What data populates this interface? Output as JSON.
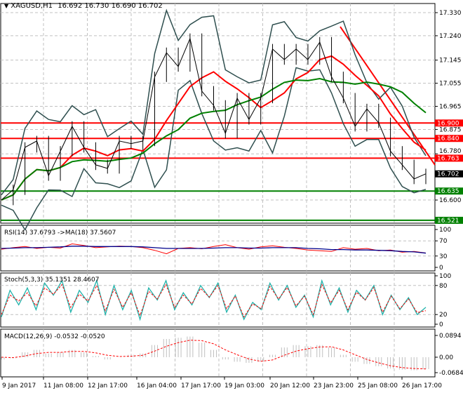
{
  "header": {
    "symbol": "XAGUSD,H1",
    "ohlc": "16.692 16.730 16.690 16.702",
    "menu_icon": "triangle-down-icon"
  },
  "colors": {
    "bull": "#000000",
    "resistance": "#ff0000",
    "support": "#008000",
    "ma_fast": "#ff0000",
    "ma_slow": "#008000",
    "bands": "#2f4f4f",
    "rsi": "#ff0000",
    "rsi_ma": "#00008b",
    "stoch_main": "#20b2aa",
    "stoch_signal": "#ff0000",
    "macd_hist": "#c0c0c0",
    "macd_signal": "#ff0000"
  },
  "chart_data": [
    {
      "type": "line",
      "panel": "price",
      "ylim": [
        16.5,
        17.36
      ],
      "yticks": [
        "17.330",
        "17.240",
        "17.145",
        "17.055",
        "16.965",
        "16.875",
        "16.780",
        "16.600"
      ],
      "xticks": [
        "9 Jan 2017",
        "11 Jan 08:00",
        "12 Jan 17:00",
        "16 Jan 04:00",
        "17 Jan 17:00",
        "19 Jan 03:00",
        "20 Jan 12:00",
        "23 Jan 23:00",
        "25 Jan 08:00",
        "26 Jan 17:00"
      ],
      "close": [
        16.6,
        16.64,
        16.805,
        16.83,
        16.695,
        16.79,
        16.887,
        16.805,
        16.737,
        16.723,
        16.83,
        16.82,
        16.83,
        17.08,
        17.174,
        17.12,
        17.229,
        17.024,
        16.969,
        16.86,
        16.997,
        16.914,
        16.997,
        17.188,
        17.147,
        17.188,
        17.147,
        17.215,
        17.08,
        16.997,
        16.887,
        16.955,
        16.901,
        16.79,
        16.737,
        16.682,
        16.702
      ],
      "levels": [
        {
          "value": "16.900",
          "kind": "resistance"
        },
        {
          "value": "16.840",
          "kind": "resistance"
        },
        {
          "value": "16.763",
          "kind": "resistance"
        },
        {
          "value": "16.635",
          "kind": "support"
        },
        {
          "value": "16.521",
          "kind": "support"
        }
      ],
      "current": "16.702",
      "trendline": {
        "from": 17.275,
        "to": 16.737
      }
    },
    {
      "type": "line",
      "panel": "rsi",
      "label": "RSI(14) 37.6793  ->MA(18) 37.5607",
      "ylim": [
        0,
        100
      ],
      "yticks": [
        "100",
        "70",
        "30",
        "0"
      ],
      "rsi": [
        48,
        52,
        55,
        50,
        53,
        51,
        62,
        58,
        52,
        54,
        56,
        55,
        52,
        45,
        36,
        50,
        52,
        49,
        55,
        60,
        52,
        48,
        54,
        57,
        53,
        50,
        46,
        44,
        42,
        52,
        48,
        50,
        44,
        46,
        40,
        42,
        38
      ],
      "ma": [
        50,
        51,
        52,
        52,
        53,
        54,
        56,
        56,
        55,
        55,
        55,
        55,
        54,
        52,
        50,
        50,
        50,
        50,
        51,
        52,
        52,
        51,
        51,
        52,
        52,
        52,
        50,
        49,
        47,
        47,
        46,
        46,
        45,
        44,
        42,
        41,
        37.6
      ]
    },
    {
      "type": "line",
      "panel": "stoch",
      "label": "Stoch(5,3,3) 35.1351 28.4607",
      "ylim": [
        0,
        100
      ],
      "yticks": [
        "100",
        "80",
        "20",
        "0"
      ],
      "main": [
        15,
        70,
        40,
        75,
        30,
        85,
        60,
        90,
        25,
        70,
        45,
        90,
        20,
        80,
        30,
        70,
        10,
        75,
        50,
        90,
        30,
        65,
        40,
        80,
        55,
        85,
        25,
        60,
        10,
        45,
        30,
        85,
        50,
        80,
        35,
        60,
        15,
        90,
        40,
        75,
        25,
        70,
        50,
        80,
        20,
        60,
        30,
        55,
        20,
        35
      ],
      "signal": [
        20,
        60,
        48,
        65,
        38,
        75,
        62,
        82,
        35,
        62,
        48,
        80,
        28,
        72,
        35,
        65,
        18,
        68,
        52,
        82,
        35,
        60,
        42,
        74,
        56,
        80,
        32,
        58,
        15,
        42,
        32,
        78,
        52,
        76,
        38,
        58,
        20,
        82,
        44,
        70,
        30,
        66,
        50,
        76,
        25,
        58,
        32,
        52,
        24,
        28
      ]
    },
    {
      "type": "bar",
      "panel": "macd",
      "label": "MACD(12,26,9) -0.0532 -0.0520",
      "ylim": [
        -0.0684,
        0.0894
      ],
      "yticks": [
        "0.0894",
        "0.00",
        "-0.0684"
      ],
      "hist": [
        -0.01,
        -0.005,
        0.02,
        0.03,
        0.015,
        0.02,
        0.03,
        0.02,
        0.005,
        -0.01,
        0.0,
        0.01,
        0.015,
        0.05,
        0.075,
        0.08,
        0.085,
        0.06,
        0.03,
        -0.01,
        -0.02,
        -0.025,
        -0.02,
        0.01,
        0.04,
        0.05,
        0.045,
        0.05,
        0.04,
        0.01,
        -0.02,
        -0.03,
        -0.04,
        -0.05,
        -0.055,
        -0.058,
        -0.053
      ],
      "signal": [
        0.0,
        -0.002,
        0.005,
        0.015,
        0.02,
        0.02,
        0.024,
        0.024,
        0.018,
        0.008,
        0.003,
        0.004,
        0.008,
        0.025,
        0.045,
        0.06,
        0.07,
        0.068,
        0.055,
        0.03,
        0.01,
        -0.008,
        -0.018,
        -0.012,
        0.008,
        0.025,
        0.035,
        0.042,
        0.043,
        0.03,
        0.01,
        -0.01,
        -0.025,
        -0.038,
        -0.046,
        -0.05,
        -0.052
      ]
    }
  ]
}
